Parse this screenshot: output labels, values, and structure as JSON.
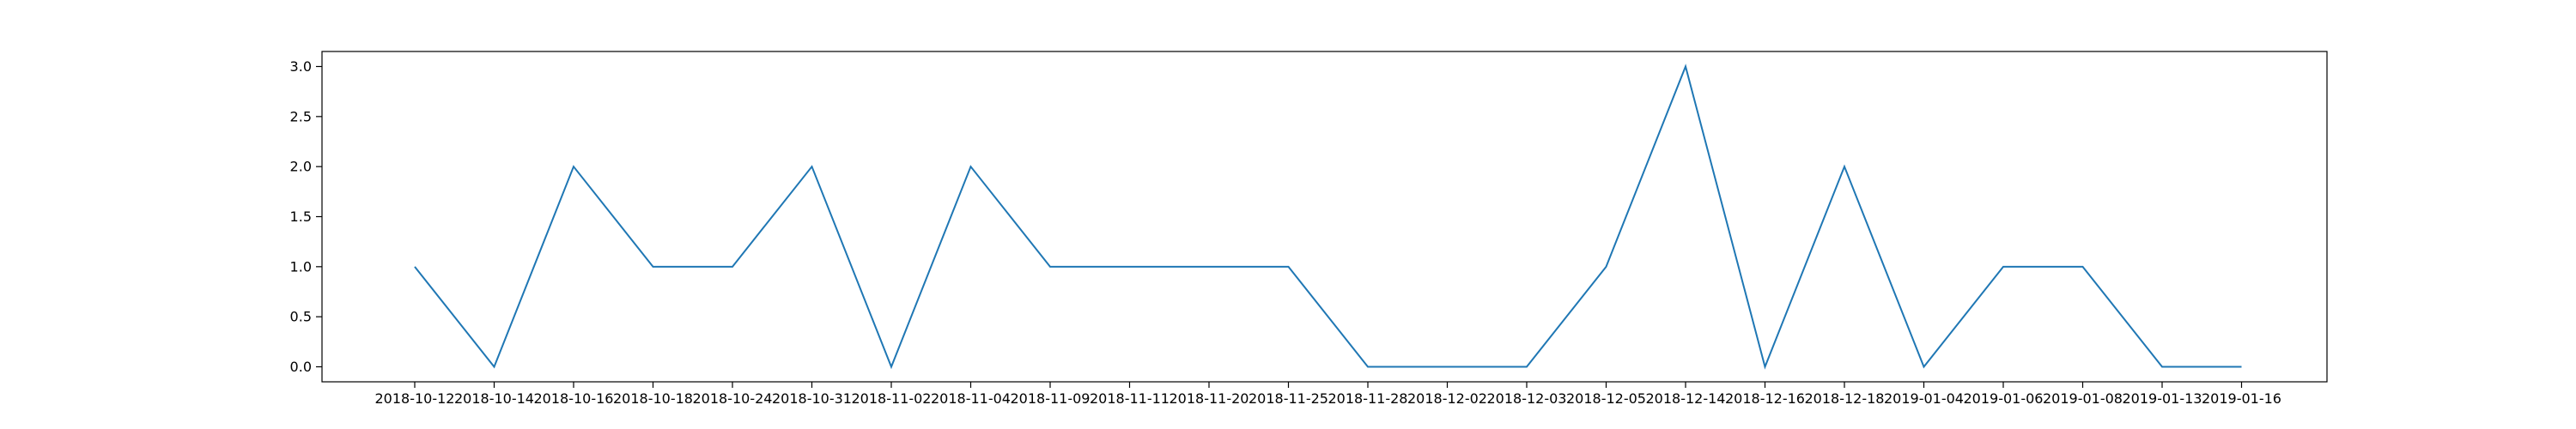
{
  "chart_data": {
    "type": "line",
    "title": "",
    "xlabel": "",
    "ylabel": "",
    "categories": [
      "2018-10-12",
      "2018-10-14",
      "2018-10-16",
      "2018-10-18",
      "2018-10-24",
      "2018-10-31",
      "2018-11-02",
      "2018-11-04",
      "2018-11-09",
      "2018-11-11",
      "2018-11-20",
      "2018-11-25",
      "2018-11-28",
      "2018-12-02",
      "2018-12-03",
      "2018-12-05",
      "2018-12-14",
      "2018-12-16",
      "2018-12-18",
      "2019-01-04",
      "2019-01-06",
      "2019-01-08",
      "2019-01-13",
      "2019-01-16"
    ],
    "series": [
      {
        "values": [
          1,
          0,
          2,
          1,
          1,
          2,
          0,
          2,
          1,
          1,
          1,
          1,
          0,
          0,
          0,
          1,
          3,
          0,
          2,
          0,
          1,
          1,
          0,
          0
        ]
      }
    ],
    "ylim": [
      -0.15,
      3.15
    ],
    "yticks": [
      0.0,
      0.5,
      1.0,
      1.5,
      2.0,
      2.5,
      3.0
    ],
    "ytick_labels": [
      "0.0",
      "0.5",
      "1.0",
      "1.5",
      "2.0",
      "2.5",
      "3.0"
    ],
    "grid": false,
    "legend": "none",
    "line_color": "#1f77b4"
  }
}
